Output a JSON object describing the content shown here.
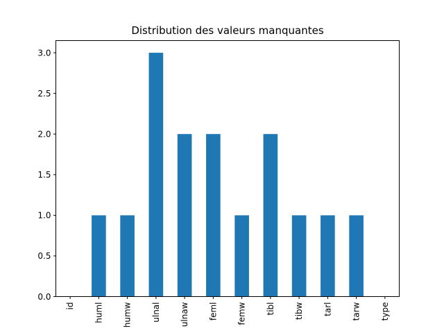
{
  "chart_data": {
    "type": "bar",
    "title": "Distribution des valeurs manquantes",
    "xlabel": "",
    "ylabel": "",
    "categories": [
      "id",
      "huml",
      "humw",
      "ulnal",
      "ulnaw",
      "feml",
      "femw",
      "tibl",
      "tibw",
      "tarl",
      "tarw",
      "type"
    ],
    "values": [
      0,
      1,
      1,
      3,
      2,
      2,
      1,
      2,
      1,
      1,
      1,
      0
    ],
    "ylim": [
      0,
      3.15
    ],
    "yticks": [
      0.0,
      0.5,
      1.0,
      1.5,
      2.0,
      2.5,
      3.0
    ],
    "ytick_labels": [
      "0.0",
      "0.5",
      "1.0",
      "1.5",
      "2.0",
      "2.5",
      "3.0"
    ],
    "grid": false,
    "bar_color": "#1f77b4"
  }
}
